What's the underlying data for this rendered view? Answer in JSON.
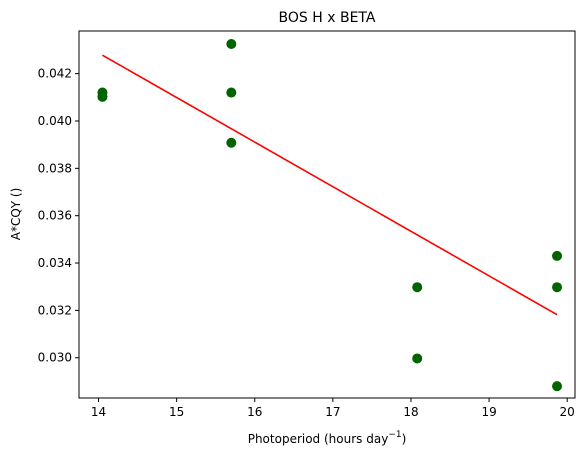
{
  "chart_data": {
    "type": "scatter",
    "title": "BOS H x BETA",
    "xlabel_main": "Photoperiod (hours day",
    "xlabel_sup": "−1",
    "xlabel_close": ")",
    "ylabel": "A*CQY ()",
    "xlim": [
      13.75,
      20.1
    ],
    "ylim": [
      0.0283,
      0.0438
    ],
    "x_ticks": [
      14,
      15,
      16,
      17,
      18,
      19,
      20
    ],
    "x_tick_labels": [
      "14",
      "15",
      "16",
      "17",
      "18",
      "19",
      "20"
    ],
    "y_ticks": [
      0.03,
      0.032,
      0.034,
      0.036,
      0.038,
      0.04,
      0.042
    ],
    "y_tick_labels": [
      "0.030",
      "0.032",
      "0.034",
      "0.036",
      "0.038",
      "0.040",
      "0.042"
    ],
    "grid": false,
    "series": [
      {
        "kind": "points",
        "color": "#006400",
        "points": [
          {
            "x": 14.05,
            "y": 0.0412
          },
          {
            "x": 14.05,
            "y": 0.04102
          },
          {
            "x": 15.7,
            "y": 0.04325
          },
          {
            "x": 15.7,
            "y": 0.0412
          },
          {
            "x": 15.7,
            "y": 0.03908
          },
          {
            "x": 18.08,
            "y": 0.03298
          },
          {
            "x": 18.08,
            "y": 0.02997
          },
          {
            "x": 19.87,
            "y": 0.0343
          },
          {
            "x": 19.87,
            "y": 0.03298
          },
          {
            "x": 19.87,
            "y": 0.0288
          }
        ]
      },
      {
        "kind": "fit-line",
        "color": "#ff0000",
        "points": [
          {
            "x": 14.05,
            "y": 0.04278
          },
          {
            "x": 19.87,
            "y": 0.03182
          }
        ]
      }
    ]
  }
}
